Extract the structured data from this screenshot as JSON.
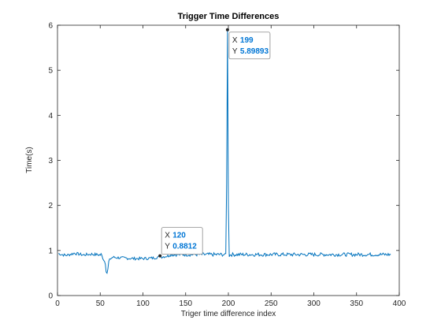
{
  "chart_data": {
    "type": "line",
    "title": "Trigger Time Differences",
    "xlabel": "Triger time difference index",
    "ylabel": "Time(s)",
    "xlim": [
      0,
      400
    ],
    "ylim": [
      0,
      6
    ],
    "xticks": [
      0,
      50,
      100,
      150,
      200,
      250,
      300,
      350,
      400
    ],
    "yticks": [
      0,
      1,
      2,
      3,
      4,
      5,
      6
    ],
    "xtick_labels": [
      "0",
      "50",
      "100",
      "150",
      "200",
      "250",
      "300",
      "350",
      "400"
    ],
    "ytick_labels": [
      "0",
      "1",
      "2",
      "3",
      "4",
      "5",
      "6"
    ],
    "grid": false,
    "series": [
      {
        "color": "#0072bd",
        "x_range": [
          1,
          390
        ],
        "baseline": 0.91,
        "noise": 0.04,
        "segments": [
          {
            "x": [
              1,
              10,
              20,
              30,
              40,
              50
            ],
            "y": [
              0.93,
              0.89,
              0.94,
              0.9,
              0.92,
              0.9
            ]
          },
          {
            "x": [
              52,
              54,
              56,
              57,
              58,
              59,
              60,
              62,
              65,
              70,
              80,
              90,
              100,
              110,
              118,
              120,
              122,
              130
            ],
            "y": [
              0.88,
              0.8,
              0.72,
              0.55,
              0.5,
              0.58,
              0.75,
              0.82,
              0.85,
              0.84,
              0.83,
              0.82,
              0.82,
              0.83,
              0.85,
              0.8812,
              0.86,
              0.88
            ]
          },
          {
            "x": [
              196,
              197,
              198,
              199,
              200,
              201,
              202
            ],
            "y": [
              0.9,
              0.92,
              2.5,
              5.89893,
              2.0,
              0.88,
              0.9
            ]
          }
        ]
      }
    ],
    "datatips": [
      {
        "x_label": "X",
        "x_value": "199",
        "y_label": "Y",
        "y_value": "5.89893",
        "x": 199,
        "y": 5.89893
      },
      {
        "x_label": "X",
        "x_value": "120",
        "y_label": "Y",
        "y_value": "0.8812",
        "x": 120,
        "y": 0.8812
      }
    ]
  }
}
